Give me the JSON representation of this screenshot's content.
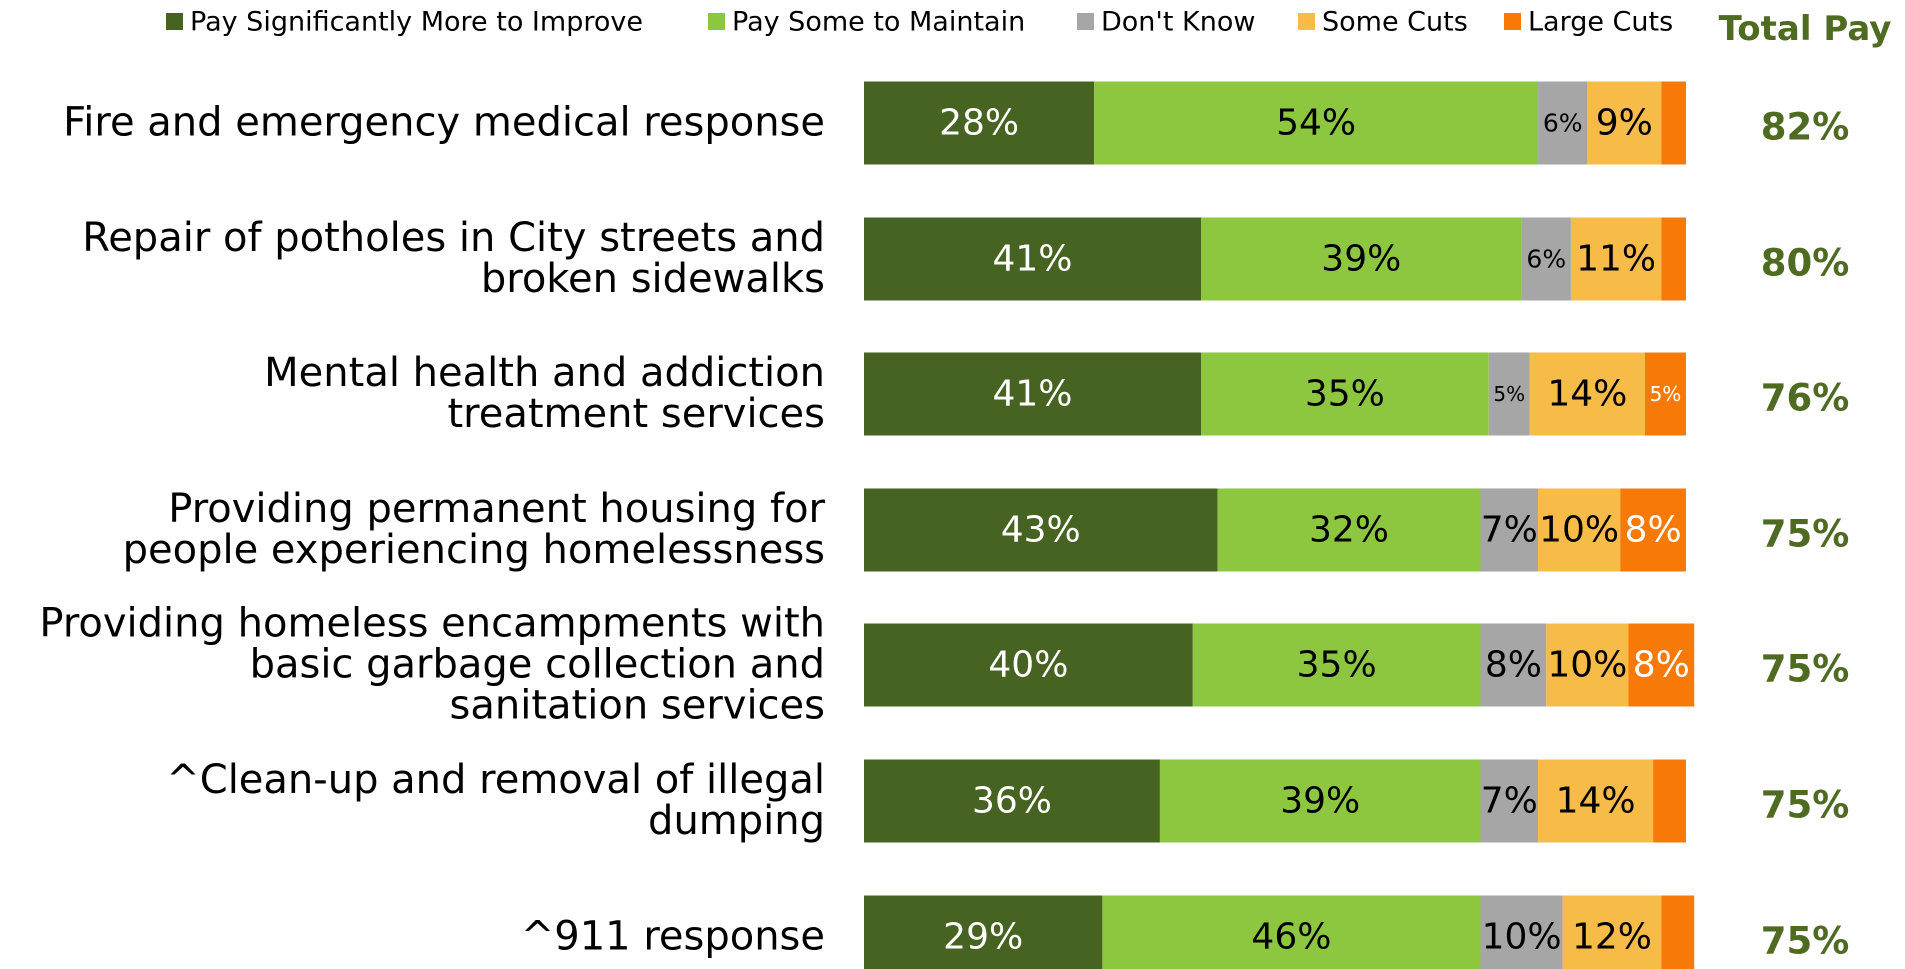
{
  "chart_data": {
    "type": "stacked-bar-horizontal",
    "categories": [
      "Fire and emergency medical response",
      "Repair of potholes in City streets and\nbroken sidewalks",
      "Mental health and addiction\ntreatment services",
      "Providing permanent housing for\npeople experiencing homelessness",
      "Providing homeless encampments with\nbasic garbage collection and\nsanitation services",
      "^Clean-up and removal of illegal dumping",
      "^911 response"
    ],
    "xlim": [
      0,
      100
    ],
    "series": [
      {
        "name": "Pay Significantly More to Improve",
        "color": "#466321",
        "label_color": "#ffffff",
        "values": [
          28,
          41,
          41,
          43,
          40,
          36,
          29
        ],
        "value_labels": [
          "28%",
          "41%",
          "41%",
          "43%",
          "40%",
          "36%",
          "29%"
        ]
      },
      {
        "name": "Pay Some to Maintain",
        "color": "#8dc63f",
        "label_color": "#000000",
        "values": [
          54,
          39,
          35,
          32,
          35,
          39,
          46
        ],
        "value_labels": [
          "54%",
          "39%",
          "35%",
          "32%",
          "35%",
          "39%",
          "46%"
        ]
      },
      {
        "name": "Don't Know",
        "color": "#a6a6a6",
        "label_color": "#000000",
        "values": [
          6,
          6,
          5,
          7,
          8,
          7,
          10
        ],
        "value_labels": [
          "6%",
          "6%",
          "5%",
          "7%",
          "8%",
          "7%",
          "10%"
        ]
      },
      {
        "name": "Some Cuts",
        "color": "#f7bb48",
        "label_color": "#000000",
        "values": [
          9,
          11,
          14,
          10,
          10,
          14,
          12
        ],
        "value_labels": [
          "9%",
          "11%",
          "14%",
          "10%",
          "10%",
          "14%",
          "12%"
        ]
      },
      {
        "name": "Large Cuts",
        "color": "#f77a08",
        "label_color": "#ffffff",
        "values": [
          3,
          3,
          5,
          8,
          8,
          4,
          4
        ],
        "value_labels": [
          null,
          null,
          "5%",
          "8%",
          "8%",
          null,
          null
        ]
      }
    ],
    "total": {
      "label": "Total Pay",
      "color": "#4e6b21",
      "values": [
        82,
        80,
        76,
        75,
        75,
        75,
        75
      ],
      "value_labels": [
        "82%",
        "80%",
        "76%",
        "75%",
        "75%",
        "75%",
        "75%"
      ]
    }
  }
}
